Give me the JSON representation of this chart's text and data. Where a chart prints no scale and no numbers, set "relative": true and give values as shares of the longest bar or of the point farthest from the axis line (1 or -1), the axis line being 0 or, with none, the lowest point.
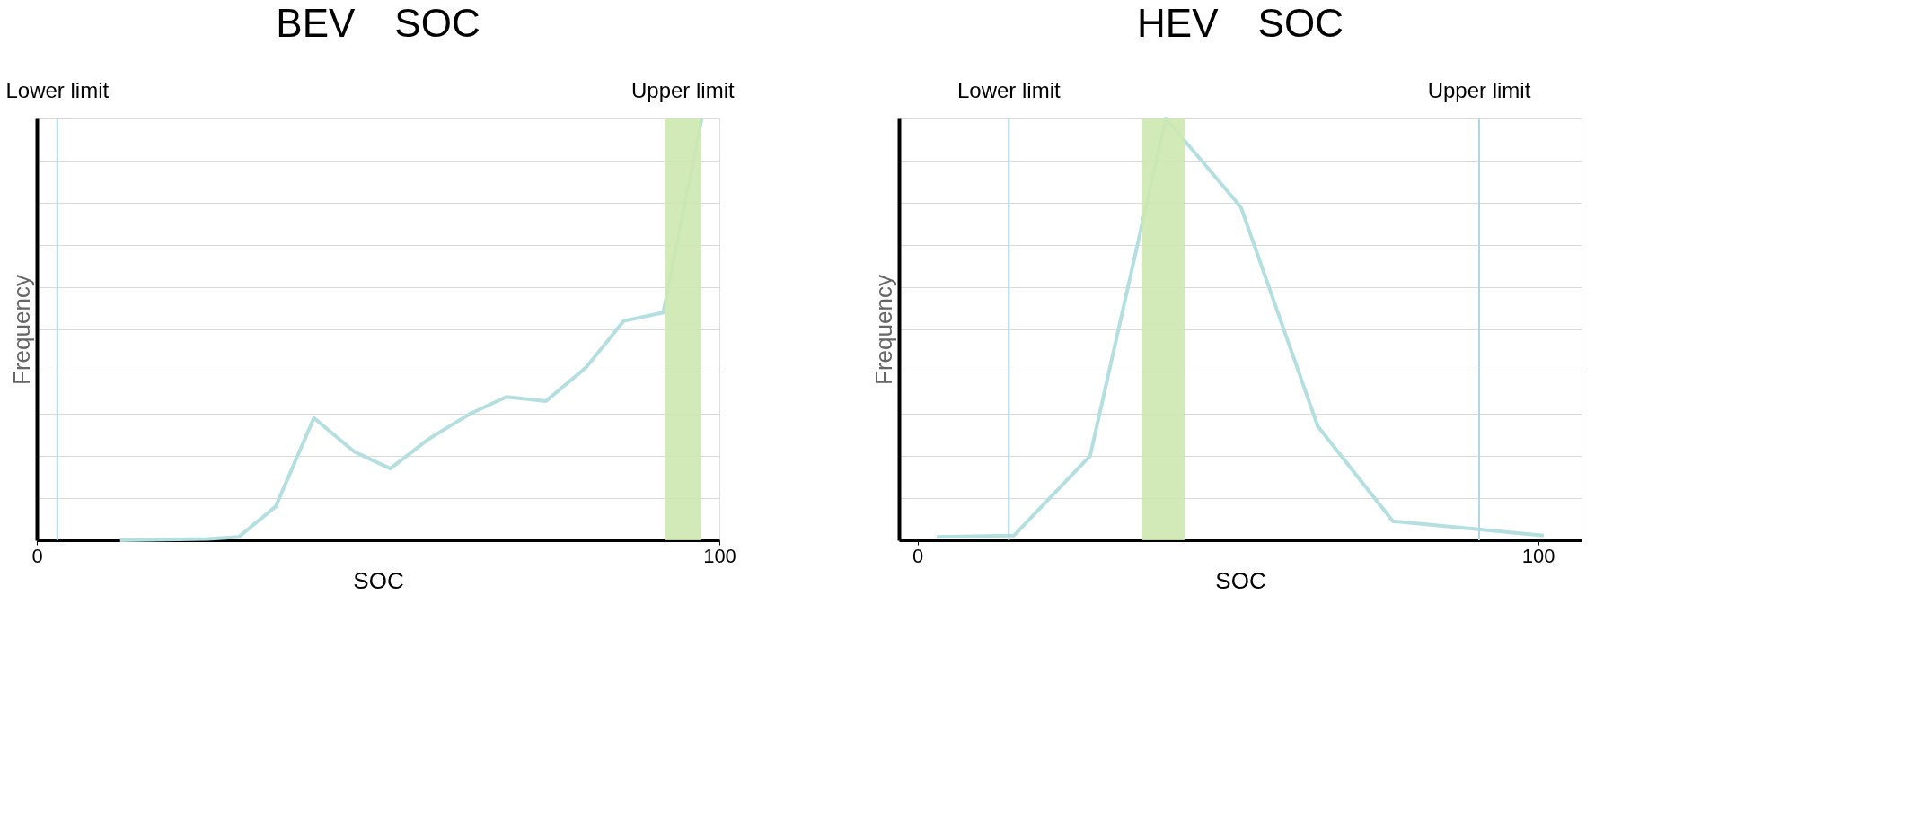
{
  "chart_data": [
    {
      "type": "line",
      "title": "BEV　SOC",
      "xlabel": "SOC",
      "ylabel": "Frequency",
      "relative": true,
      "grid": "y",
      "xlim": [
        0,
        100
      ],
      "xticks": [
        0,
        100
      ],
      "x": [
        12.2,
        25,
        29.6,
        35,
        40.6,
        46.5,
        51.8,
        57.4,
        63.5,
        68.8,
        74.6,
        80.5,
        86,
        91.8,
        97.4
      ],
      "series": [
        {
          "color": "#b4dfe0",
          "values": [
            0,
            0.003,
            0.008,
            0.08,
            0.29,
            0.21,
            0.17,
            0.24,
            0.3,
            0.34,
            0.33,
            0.41,
            0.52,
            0.54,
            1
          ]
        }
      ],
      "ref_lines": [
        {
          "axis": "x",
          "value": 3,
          "label": "Lower limit",
          "color": "#add8e6"
        }
      ],
      "bands": [
        {
          "axis": "x",
          "from": 92,
          "to": 97.3,
          "label": "Upper limit",
          "color": "#cde8b0"
        }
      ]
    },
    {
      "type": "line",
      "title": "HEV　SOC",
      "xlabel": "SOC",
      "ylabel": "Frequency",
      "relative": true,
      "grid": "y",
      "xlim": [
        -3,
        107
      ],
      "xticks": [
        0,
        100
      ],
      "x": [
        3.1,
        15.5,
        27.8,
        40,
        52.1,
        64.5,
        76.6,
        88.8,
        100.9
      ],
      "series": [
        {
          "color": "#b4dfe0",
          "values": [
            0.008,
            0.011,
            0.2,
            1,
            0.79,
            0.27,
            0.045,
            0.028,
            0.011
          ]
        }
      ],
      "ref_lines": [
        {
          "axis": "x",
          "value": 14.7,
          "label": "Lower limit",
          "color": "#add8e6"
        },
        {
          "axis": "x",
          "value": 90.5,
          "label": "Upper limit",
          "color": "#add8e6"
        }
      ],
      "bands": [
        {
          "axis": "x",
          "from": 36.2,
          "to": 43.1,
          "color": "#cde8b0"
        }
      ]
    }
  ]
}
